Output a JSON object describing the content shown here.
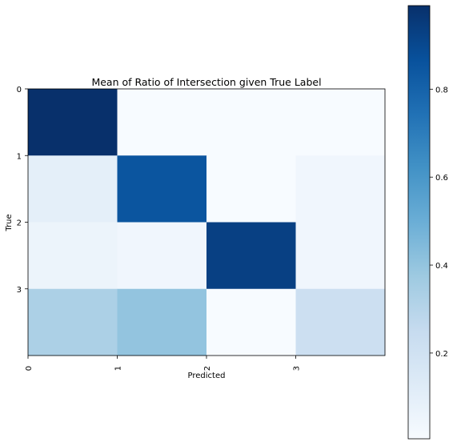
{
  "chart_data": {
    "type": "heatmap",
    "title": "Mean of Ratio of Intersection given True Label",
    "xlabel": "Predicted",
    "ylabel": "True",
    "x_categories": [
      "0",
      "1",
      "2",
      "3"
    ],
    "y_categories": [
      "0",
      "1",
      "2",
      "3"
    ],
    "x_tick_rotation": "vertical",
    "values": [
      [
        0.99,
        0.005,
        0.005,
        0.005
      ],
      [
        0.1,
        0.85,
        0.005,
        0.04
      ],
      [
        0.06,
        0.04,
        0.93,
        0.04
      ],
      [
        0.33,
        0.4,
        0.005,
        0.22
      ]
    ],
    "colormap": "Blues",
    "colorbar": {
      "range": [
        0.005,
        0.99
      ],
      "ticks": [
        0.2,
        0.4,
        0.6,
        0.8
      ],
      "tick_labels": [
        "0.2",
        "0.4",
        "0.6",
        "0.8"
      ]
    },
    "grid": false
  }
}
